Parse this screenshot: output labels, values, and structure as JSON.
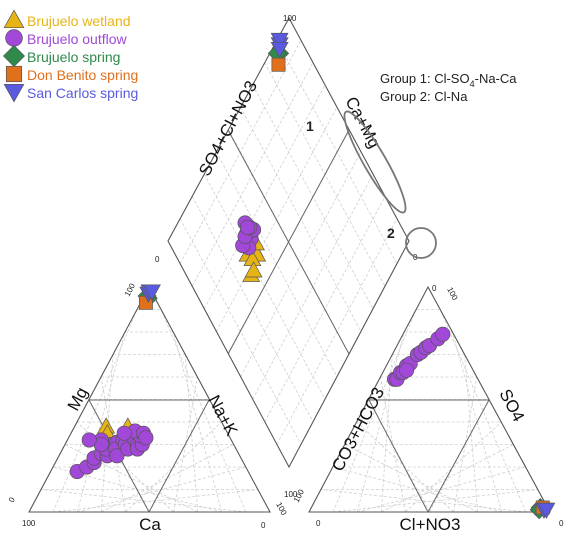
{
  "chart_data": {
    "type": "scatter",
    "subtype": "piper-diagram",
    "title": "",
    "legend_position": "top-left",
    "grid": true,
    "axes": {
      "cation_triangle": {
        "left_label": "Mg",
        "right_label": "Na+K",
        "bottom_label": "Ca",
        "ticks": [
          "100",
          "0",
          "100",
          "0",
          "100"
        ]
      },
      "anion_triangle": {
        "left_label": "CO3+HCO3",
        "right_label": "SO4",
        "bottom_label": "Cl+NO3",
        "ticks": [
          "0",
          "100",
          "0",
          "100",
          "0"
        ]
      },
      "diamond": {
        "left_label": "SO4+Cl+NO3",
        "right_label": "Ca+Mg",
        "ticks": [
          "100",
          "0",
          "0",
          "100"
        ]
      }
    },
    "annotations": {
      "group_1_label": "1",
      "group_2_label": "2",
      "group_1_text": "Group 1: Cl-SO",
      "group_1_sub": "4",
      "group_1_tail": "-Na-Ca",
      "group_2_text": "Group 2: Cl-Na"
    },
    "series": [
      {
        "name": "Brujuelo wetland",
        "color": "#e7b416",
        "marker": "triangle",
        "cations": [
          [
            16,
            30
          ],
          [
            17,
            33
          ],
          [
            22,
            38
          ],
          [
            23,
            30
          ],
          [
            27,
            33
          ],
          [
            25,
            35
          ],
          [
            13,
            38
          ],
          [
            15,
            35
          ]
        ],
        "anions": [],
        "diamond": [
          [
            62,
            66
          ],
          [
            60,
            66
          ],
          [
            64,
            70
          ],
          [
            61,
            69
          ],
          [
            63,
            64
          ],
          [
            58,
            73
          ],
          [
            58,
            71
          ]
        ]
      },
      {
        "name": "Brujuelo outflow",
        "color": "#a148d8",
        "marker": "circle",
        "cations": [
          [
            11,
            18
          ],
          [
            14,
            20
          ],
          [
            16,
            22
          ],
          [
            15,
            24
          ],
          [
            17,
            26
          ],
          [
            19,
            30
          ],
          [
            20,
            25
          ],
          [
            18,
            28
          ],
          [
            14,
            32
          ],
          [
            21,
            31
          ],
          [
            22,
            28
          ],
          [
            23,
            32
          ],
          [
            25,
            30
          ],
          [
            24,
            25
          ],
          [
            27,
            28
          ],
          [
            28,
            32
          ],
          [
            30,
            30
          ],
          [
            31,
            28
          ],
          [
            32,
            30
          ],
          [
            29,
            34
          ],
          [
            26,
            36
          ],
          [
            30,
            35
          ],
          [
            32,
            33
          ],
          [
            22,
            35
          ],
          [
            15,
            30
          ],
          [
            9,
            32
          ]
        ],
        "anions": [
          [
            6,
            59
          ],
          [
            7,
            59
          ],
          [
            7,
            62
          ],
          [
            8,
            62
          ],
          [
            8,
            65
          ],
          [
            9,
            66
          ],
          [
            10,
            70
          ],
          [
            11,
            71
          ],
          [
            12,
            73
          ],
          [
            13,
            74
          ],
          [
            15,
            77
          ],
          [
            16,
            79
          ],
          [
            9,
            63
          ]
        ],
        "diamond": [
          [
            66,
            65
          ],
          [
            65,
            68
          ],
          [
            69,
            66
          ],
          [
            68,
            70
          ],
          [
            69,
            67
          ],
          [
            67,
            62
          ],
          [
            69,
            63
          ],
          [
            72,
            64
          ],
          [
            70,
            64
          ]
        ]
      },
      {
        "name": "Brujuelo spring",
        "color": "#2f8a4c",
        "marker": "diamond",
        "cations": [
          [
            2,
            95
          ],
          [
            1,
            96
          ]
        ],
        "anions": [
          [
            95,
            2
          ],
          [
            95,
            1
          ]
        ],
        "diamond": [
          [
            95,
            12
          ],
          [
            96,
            13
          ]
        ]
      },
      {
        "name": "Don Benito spring",
        "color": "#e0701c",
        "marker": "square",
        "cations": [
          [
            2,
            93
          ]
        ],
        "anions": [
          [
            96,
            2
          ]
        ],
        "diamond": [
          [
            93,
            15
          ]
        ]
      },
      {
        "name": "San Carlos spring",
        "color": "#5a5ae0",
        "marker": "triangle-down",
        "cations": [
          [
            1,
            97
          ],
          [
            1,
            98
          ],
          [
            2,
            98
          ]
        ],
        "anions": [
          [
            97,
            1
          ],
          [
            98,
            1
          ]
        ],
        "diamond": [
          [
            97,
            10
          ],
          [
            98,
            9
          ],
          [
            96,
            11
          ]
        ]
      }
    ]
  }
}
